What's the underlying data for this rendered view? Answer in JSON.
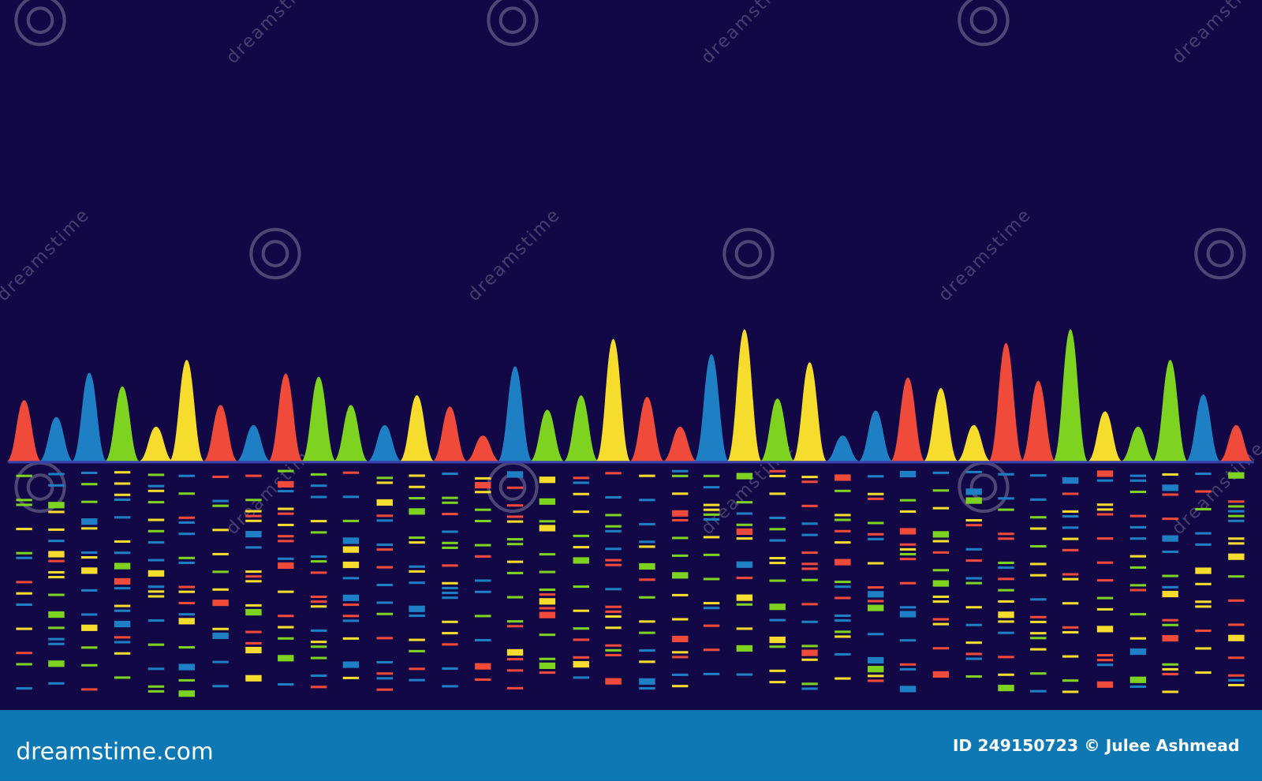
{
  "watermark": "dreamstime",
  "footer": {
    "brand": "dreamstime.com",
    "credit": "ID 249150723 © Julee Ashmead"
  }
}
